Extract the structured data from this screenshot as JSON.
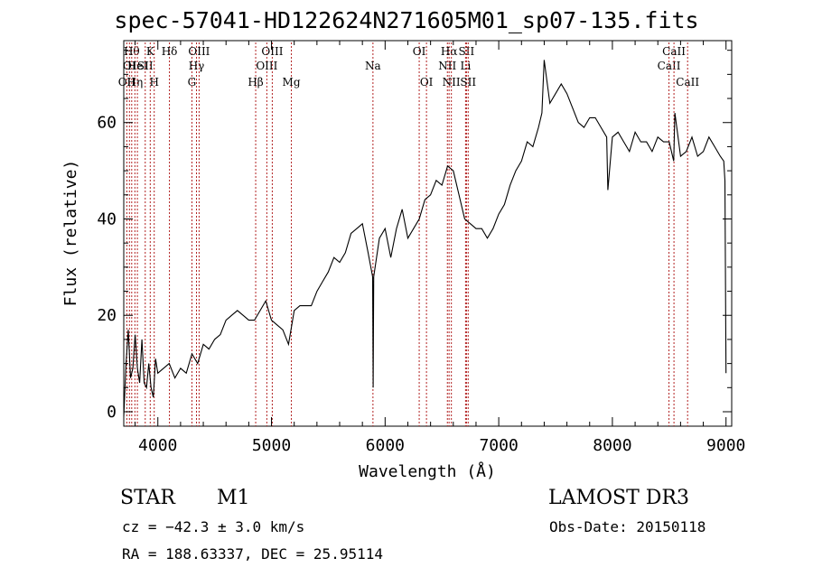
{
  "chart_data": {
    "type": "line",
    "title": "spec-57041-HD122624N271605M01_sp07-135.fits",
    "xlabel": "Wavelength (Å)",
    "ylabel": "Flux (relative)",
    "xlim": [
      3700,
      9050
    ],
    "ylim": [
      -3,
      77
    ],
    "xticks": [
      4000,
      5000,
      6000,
      7000,
      8000,
      9000
    ],
    "yticks": [
      0,
      20,
      40,
      60
    ],
    "grid": false,
    "line_color": "#000000",
    "marker_color": "#b22222",
    "series": [
      {
        "x": [
          3700,
          3720,
          3740,
          3760,
          3780,
          3800,
          3820,
          3840,
          3860,
          3880,
          3900,
          3920,
          3940,
          3960,
          3980,
          4000,
          4050,
          4100,
          4150,
          4200,
          4250,
          4300,
          4350,
          4400,
          4450,
          4500,
          4550,
          4600,
          4650,
          4700,
          4750,
          4800,
          4850,
          4900,
          4950,
          5000,
          5050,
          5100,
          5150,
          5200,
          5250,
          5300,
          5350,
          5400,
          5450,
          5500,
          5550,
          5600,
          5650,
          5700,
          5750,
          5800,
          5850,
          5890,
          5895,
          5900,
          5950,
          6000,
          6050,
          6100,
          6150,
          6200,
          6250,
          6300,
          6350,
          6400,
          6450,
          6500,
          6550,
          6600,
          6650,
          6700,
          6750,
          6800,
          6850,
          6900,
          6950,
          7000,
          7050,
          7100,
          7150,
          7200,
          7250,
          7300,
          7350,
          7380,
          7400,
          7450,
          7500,
          7550,
          7600,
          7650,
          7700,
          7750,
          7800,
          7850,
          7900,
          7950,
          7960,
          8000,
          8050,
          8100,
          8150,
          8200,
          8250,
          8300,
          8350,
          8400,
          8450,
          8500,
          8540,
          8550,
          8600,
          8650,
          8700,
          8750,
          8800,
          8850,
          8900,
          8950,
          8980,
          8990,
          9000
        ],
        "y": [
          -1,
          10,
          17,
          7,
          9,
          16,
          9,
          6,
          15,
          6,
          5,
          10,
          5,
          3,
          11,
          8,
          9,
          10,
          7,
          9,
          8,
          12,
          10,
          14,
          13,
          15,
          16,
          19,
          20,
          21,
          20,
          19,
          19,
          21,
          23,
          19,
          18,
          17,
          14,
          21,
          22,
          22,
          22,
          25,
          27,
          29,
          32,
          31,
          33,
          37,
          38,
          39,
          33,
          28,
          5,
          28,
          36,
          38,
          32,
          38,
          42,
          36,
          38,
          40,
          44,
          45,
          48,
          47,
          51,
          50,
          45,
          40,
          39,
          38,
          38,
          36,
          38,
          41,
          43,
          47,
          50,
          52,
          56,
          55,
          59,
          62,
          73,
          64,
          66,
          68,
          66,
          63,
          60,
          59,
          61,
          61,
          59,
          57,
          46,
          57,
          58,
          56,
          54,
          58,
          56,
          56,
          54,
          57,
          56,
          56,
          52,
          62,
          53,
          54,
          57,
          53,
          54,
          57,
          55,
          53,
          52,
          48,
          8
        ]
      }
    ],
    "line_markers": [
      {
        "x": 3727,
        "row": 2,
        "label": "OII"
      },
      {
        "x": 3750,
        "row": 1,
        "label": "OI"
      },
      {
        "x": 3770,
        "row": 0,
        "label": "Hθ"
      },
      {
        "x": 3798,
        "row": 2,
        "label": "Hη"
      },
      {
        "x": 3820,
        "row": 1,
        "label": "HeI"
      },
      {
        "x": 3889,
        "row": 1,
        "label": "SII"
      },
      {
        "x": 3933,
        "row": 0,
        "label": "K"
      },
      {
        "x": 3968,
        "row": 2,
        "label": "H"
      },
      {
        "x": 4102,
        "row": 0,
        "label": "Hδ"
      },
      {
        "x": 4300,
        "row": 2,
        "label": "G"
      },
      {
        "x": 4340,
        "row": 1,
        "label": "Hγ"
      },
      {
        "x": 4363,
        "row": 0,
        "label": "OIII"
      },
      {
        "x": 4861,
        "row": 2,
        "label": "Hβ"
      },
      {
        "x": 4959,
        "row": 1,
        "label": "OIII"
      },
      {
        "x": 5007,
        "row": 0,
        "label": "OIII"
      },
      {
        "x": 5175,
        "row": 2,
        "label": "Mg"
      },
      {
        "x": 5893,
        "row": 1,
        "label": "Na"
      },
      {
        "x": 6300,
        "row": 0,
        "label": "OI"
      },
      {
        "x": 6364,
        "row": 2,
        "label": "OI"
      },
      {
        "x": 6548,
        "row": 1,
        "label": "NII"
      },
      {
        "x": 6563,
        "row": 0,
        "label": "Hα"
      },
      {
        "x": 6583,
        "row": 2,
        "label": "NII"
      },
      {
        "x": 6708,
        "row": 1,
        "label": "Li"
      },
      {
        "x": 6716,
        "row": 0,
        "label": "SII"
      },
      {
        "x": 6731,
        "row": 2,
        "label": "SII"
      },
      {
        "x": 8498,
        "row": 1,
        "label": "CaII"
      },
      {
        "x": 8542,
        "row": 0,
        "label": "CaII"
      },
      {
        "x": 8662,
        "row": 2,
        "label": "CaII"
      }
    ]
  },
  "info": {
    "class_label": "STAR",
    "subclass_label": "M1",
    "survey": "LAMOST DR3",
    "cz": "cz = −42.3 ± 3.0 km/s",
    "obs_date": "Obs-Date: 20150118",
    "coords": "RA = 188.63337, DEC =  25.95114"
  }
}
